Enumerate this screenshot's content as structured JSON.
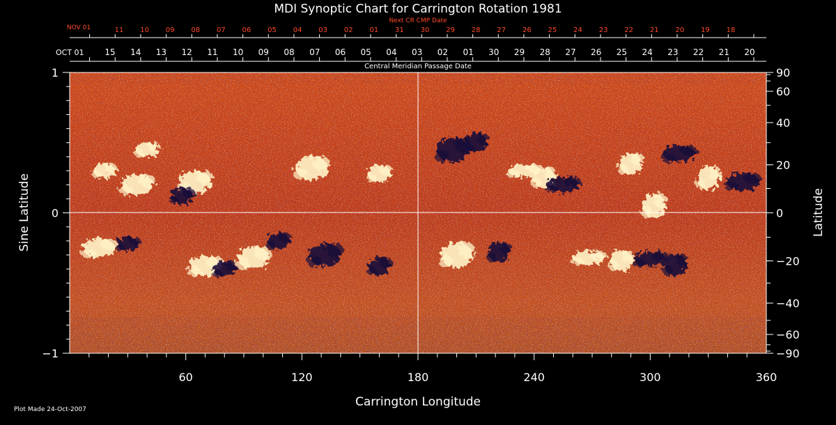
{
  "chart_data": {
    "type": "heatmap",
    "title": "MDI Synoptic Chart for Carrington Rotation 1981",
    "xlabel": "Carrington Longitude",
    "ylabel_left": "Sine Latitude",
    "ylabel_right": "Latitude",
    "xlim": [
      0,
      360
    ],
    "ylim": [
      -1,
      1
    ],
    "x_ticks": [
      60,
      120,
      180,
      240,
      300,
      360
    ],
    "y_left_ticks": [
      {
        "value": 1,
        "label": "1"
      },
      {
        "value": 0,
        "label": "0"
      },
      {
        "value": -1,
        "label": "−1"
      }
    ],
    "y_right_ticks": [
      {
        "lat": 90,
        "label": "90"
      },
      {
        "lat": 60,
        "label": "60"
      },
      {
        "lat": 40,
        "label": "40"
      },
      {
        "lat": 20,
        "label": "20"
      },
      {
        "lat": 0,
        "label": "0"
      },
      {
        "lat": -20,
        "label": "−20"
      },
      {
        "lat": -40,
        "label": "−40"
      },
      {
        "lat": -60,
        "label": "−60"
      },
      {
        "lat": -90,
        "label": "−90"
      }
    ],
    "reference_lines": {
      "longitude": 180,
      "sine_latitude": 0
    },
    "cmp_axis": {
      "label": "Central Meridian Passage Date",
      "start_label": "OCT 01",
      "dates": [
        "15",
        "14",
        "13",
        "12",
        "11",
        "10",
        "09",
        "08",
        "07",
        "06",
        "05",
        "04",
        "03",
        "02",
        "01",
        "30",
        "29",
        "28",
        "27",
        "26",
        "25",
        "24",
        "23",
        "22",
        "21",
        "20"
      ]
    },
    "next_cr_axis": {
      "label": "Next CR CMP Date",
      "start_label": "NOV 01",
      "dates": [
        "11",
        "10",
        "09",
        "08",
        "07",
        "06",
        "05",
        "04",
        "03",
        "02",
        "01",
        "31",
        "30",
        "29",
        "28",
        "27",
        "26",
        "25",
        "24",
        "23",
        "22",
        "21",
        "20",
        "19",
        "18"
      ]
    },
    "active_regions": [
      {
        "lon": 18,
        "sinlat": 0.3,
        "polarity": "positive"
      },
      {
        "lon": 35,
        "sinlat": 0.2,
        "polarity": "positive"
      },
      {
        "lon": 40,
        "sinlat": 0.45,
        "polarity": "positive"
      },
      {
        "lon": 65,
        "sinlat": 0.22,
        "polarity": "positive"
      },
      {
        "lon": 58,
        "sinlat": 0.12,
        "polarity": "negative"
      },
      {
        "lon": 125,
        "sinlat": 0.32,
        "polarity": "positive"
      },
      {
        "lon": 160,
        "sinlat": 0.28,
        "polarity": "positive"
      },
      {
        "lon": 198,
        "sinlat": 0.45,
        "polarity": "negative"
      },
      {
        "lon": 210,
        "sinlat": 0.5,
        "polarity": "negative"
      },
      {
        "lon": 235,
        "sinlat": 0.3,
        "polarity": "positive"
      },
      {
        "lon": 245,
        "sinlat": 0.25,
        "polarity": "positive"
      },
      {
        "lon": 255,
        "sinlat": 0.2,
        "polarity": "negative"
      },
      {
        "lon": 290,
        "sinlat": 0.35,
        "polarity": "positive"
      },
      {
        "lon": 315,
        "sinlat": 0.42,
        "polarity": "negative"
      },
      {
        "lon": 330,
        "sinlat": 0.25,
        "polarity": "positive"
      },
      {
        "lon": 348,
        "sinlat": 0.22,
        "polarity": "negative"
      },
      {
        "lon": 302,
        "sinlat": 0.05,
        "polarity": "positive"
      },
      {
        "lon": 15,
        "sinlat": -0.25,
        "polarity": "positive"
      },
      {
        "lon": 30,
        "sinlat": -0.22,
        "polarity": "negative"
      },
      {
        "lon": 70,
        "sinlat": -0.38,
        "polarity": "positive"
      },
      {
        "lon": 80,
        "sinlat": -0.4,
        "polarity": "negative"
      },
      {
        "lon": 95,
        "sinlat": -0.32,
        "polarity": "positive"
      },
      {
        "lon": 108,
        "sinlat": -0.2,
        "polarity": "negative"
      },
      {
        "lon": 132,
        "sinlat": -0.3,
        "polarity": "negative"
      },
      {
        "lon": 160,
        "sinlat": -0.38,
        "polarity": "negative"
      },
      {
        "lon": 200,
        "sinlat": -0.3,
        "polarity": "positive"
      },
      {
        "lon": 222,
        "sinlat": -0.28,
        "polarity": "negative"
      },
      {
        "lon": 268,
        "sinlat": -0.32,
        "polarity": "positive"
      },
      {
        "lon": 285,
        "sinlat": -0.34,
        "polarity": "positive"
      },
      {
        "lon": 300,
        "sinlat": -0.33,
        "polarity": "negative"
      },
      {
        "lon": 313,
        "sinlat": -0.37,
        "polarity": "negative"
      }
    ]
  },
  "footer": {
    "plot_made": "Plot Made 24-Oct-2007"
  },
  "colors": {
    "background": "#000000",
    "axes": "#ffffff",
    "next_cr_text": "#ff4a2a",
    "field_base": "#c8431a",
    "positive": "#fff4c8",
    "negative": "#1a0c3a"
  }
}
